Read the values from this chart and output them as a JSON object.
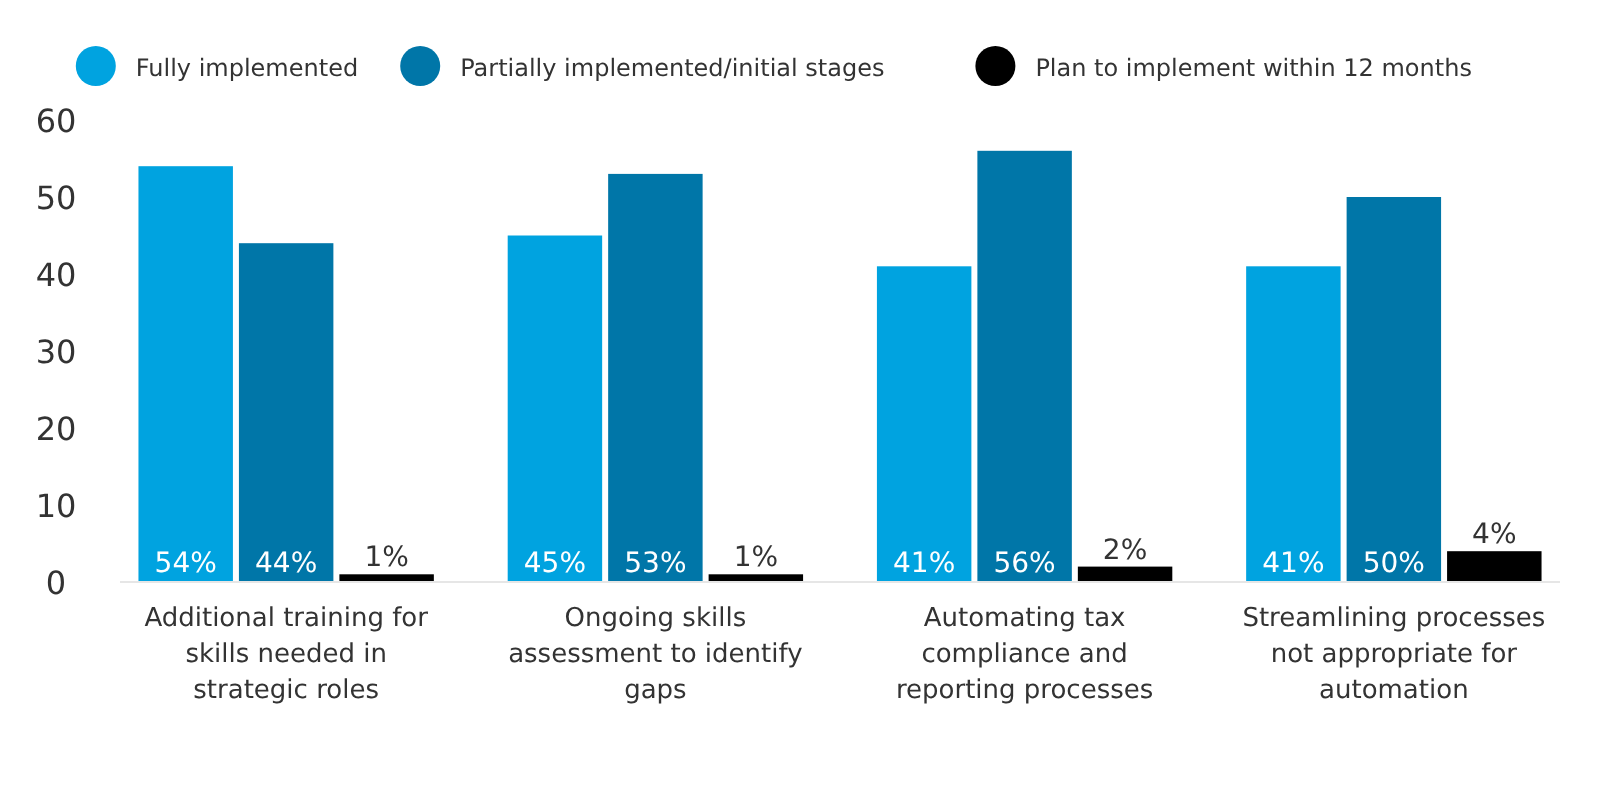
{
  "chart_data": {
    "type": "bar",
    "categories": [
      "Additional training for skills needed in strategic roles",
      "Ongoing skills assessment to identify gaps",
      "Automating tax compliance and reporting processes",
      "Streamlining processes not appropriate for automation"
    ],
    "series": [
      {
        "name": "Fully implemented",
        "color": "#00a3e0",
        "values": [
          54,
          45,
          41,
          41
        ],
        "value_labels": [
          "54%",
          "45%",
          "41%",
          "41%"
        ]
      },
      {
        "name": "Partially implemented/initial stages",
        "color": "#0076a8",
        "values": [
          44,
          53,
          56,
          50
        ],
        "value_labels": [
          "44%",
          "53%",
          "56%",
          "50%"
        ]
      },
      {
        "name": "Plan to implement within 12 months",
        "color": "#000000",
        "values": [
          1,
          1,
          2,
          4
        ],
        "value_labels": [
          "1%",
          "1%",
          "2%",
          "4%"
        ]
      }
    ],
    "ylim": [
      0,
      60
    ],
    "yticks": [
      0,
      10,
      20,
      30,
      40,
      50,
      60
    ],
    "grid": false,
    "legend": "top"
  }
}
